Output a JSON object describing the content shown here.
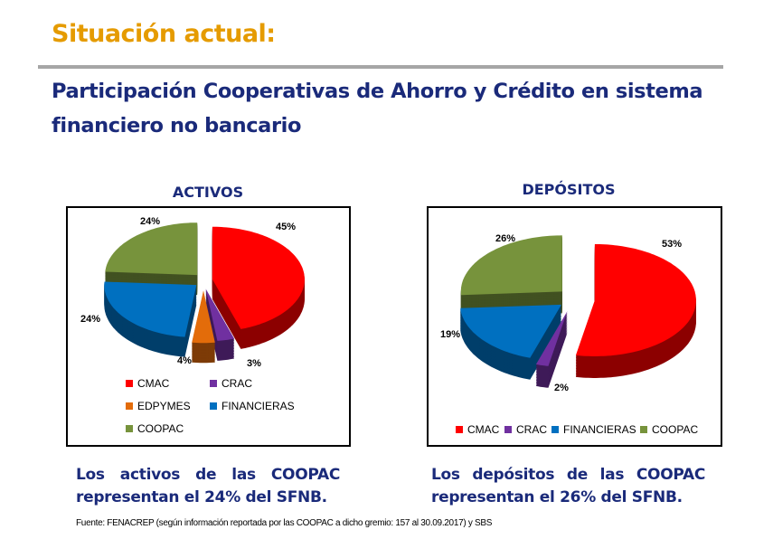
{
  "title": "Situación actual:",
  "subtitle": "Participación Cooperativas de Ahorro y Crédito en sistema financiero no bancario",
  "colors": {
    "CMAC": "#ff0000",
    "CRAC": "#7030a0",
    "EDPYMES": "#e36c0a",
    "FINANCIERAS": "#0070c0",
    "COOPAC": "#77933c",
    "title": "#e59b00",
    "subtitle": "#1a2a7a"
  },
  "chart_data": [
    {
      "type": "pie",
      "title": "ACTIVOS",
      "categories": [
        "CMAC",
        "CRAC",
        "EDPYMES",
        "FINANCIERAS",
        "COOPAC"
      ],
      "values": [
        45,
        3,
        4,
        24,
        24
      ],
      "labels": [
        "45%",
        "3%",
        "4%",
        "24%",
        "24%"
      ],
      "legend": "bottom",
      "style": "exploded 3D"
    },
    {
      "type": "pie",
      "title": "DEPÓSITOS",
      "categories": [
        "CMAC",
        "CRAC",
        "FINANCIERAS",
        "COOPAC"
      ],
      "values": [
        53,
        2,
        19,
        26
      ],
      "labels": [
        "53%",
        "2%",
        "19%",
        "26%"
      ],
      "legend": "bottom",
      "style": "exploded 3D"
    }
  ],
  "captions": [
    "Los activos de las COOPAC representan el 24% del SFNB.",
    "Los depósitos de las COOPAC representan el 26% del SFNB."
  ],
  "footnote": "Fuente: FENACREP (según información reportada por las COOPAC a dicho gremio: 157 al 30.09.2017) y SBS"
}
